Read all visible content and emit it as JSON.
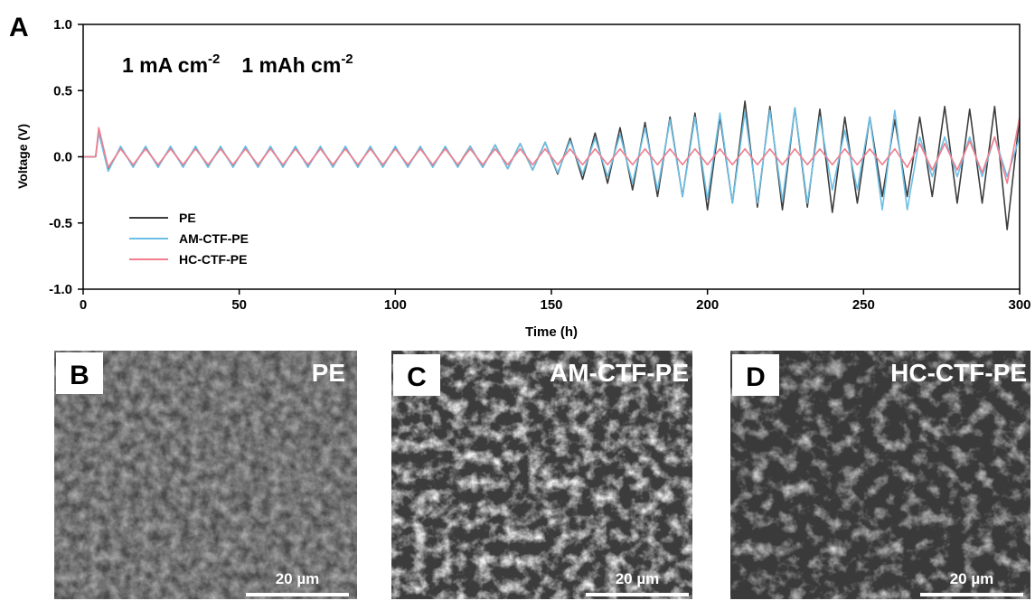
{
  "panel_label": "A",
  "chart_data": {
    "type": "line",
    "ylabel": "Voltage (V)",
    "xlabel": "Time (h)",
    "annotation": [
      "1 mA cm",
      "-2",
      "1 mAh cm",
      "-2"
    ],
    "xlim": [
      0,
      300
    ],
    "xticks": [
      0,
      50,
      100,
      150,
      200,
      250,
      300
    ],
    "ylim": [
      -1,
      1
    ],
    "yticks": [
      {
        "value": 1,
        "label": "1.0"
      },
      {
        "value": 0.5,
        "label": "0.5"
      },
      {
        "value": 0,
        "label": "0.0"
      },
      {
        "value": -0.5,
        "label": "-0.5"
      },
      {
        "value": -1,
        "label": "-1.0"
      }
    ],
    "x": [
      0,
      4,
      5,
      8,
      12,
      16,
      20,
      24,
      28,
      32,
      36,
      40,
      44,
      48,
      52,
      56,
      60,
      64,
      68,
      72,
      76,
      80,
      84,
      88,
      92,
      96,
      100,
      104,
      108,
      112,
      116,
      120,
      124,
      128,
      132,
      136,
      140,
      144,
      148,
      152,
      156,
      160,
      164,
      168,
      172,
      176,
      180,
      184,
      188,
      192,
      196,
      200,
      204,
      208,
      212,
      216,
      220,
      224,
      228,
      232,
      236,
      240,
      244,
      248,
      252,
      256,
      260,
      264,
      268,
      272,
      276,
      280,
      284,
      288,
      292,
      296,
      300
    ],
    "series": [
      {
        "name": "PE",
        "color": "#3d3d3d",
        "values": [
          0,
          0,
          0.2,
          -0.1,
          0.07,
          -0.07,
          0.07,
          -0.07,
          0.07,
          -0.07,
          0.07,
          -0.07,
          0.07,
          -0.07,
          0.07,
          -0.07,
          0.07,
          -0.07,
          0.07,
          -0.07,
          0.07,
          -0.07,
          0.07,
          -0.07,
          0.07,
          -0.07,
          0.07,
          -0.07,
          0.07,
          -0.07,
          0.07,
          -0.07,
          0.08,
          -0.08,
          0.09,
          -0.09,
          0.1,
          -0.1,
          0.11,
          -0.13,
          0.14,
          -0.17,
          0.18,
          -0.2,
          0.22,
          -0.25,
          0.26,
          -0.3,
          0.3,
          -0.3,
          0.33,
          -0.4,
          0.3,
          -0.35,
          0.42,
          -0.38,
          0.38,
          -0.4,
          0.37,
          -0.38,
          0.36,
          -0.42,
          0.3,
          -0.35,
          0.3,
          -0.3,
          0.28,
          -0.3,
          0.3,
          -0.3,
          0.38,
          -0.35,
          0.36,
          -0.35,
          0.38,
          -0.55,
          0.3
        ]
      },
      {
        "name": "AM-CTF-PE",
        "color": "#6cbfe6",
        "values": [
          0,
          0,
          0.18,
          -0.11,
          0.08,
          -0.08,
          0.08,
          -0.08,
          0.08,
          -0.08,
          0.08,
          -0.08,
          0.08,
          -0.08,
          0.08,
          -0.08,
          0.08,
          -0.08,
          0.08,
          -0.08,
          0.08,
          -0.08,
          0.08,
          -0.08,
          0.08,
          -0.08,
          0.08,
          -0.08,
          0.08,
          -0.08,
          0.08,
          -0.08,
          0.08,
          -0.08,
          0.09,
          -0.09,
          0.1,
          -0.1,
          0.11,
          -0.12,
          0.12,
          -0.13,
          0.14,
          -0.15,
          0.17,
          -0.2,
          0.22,
          -0.25,
          0.28,
          -0.3,
          0.3,
          -0.32,
          0.33,
          -0.35,
          0.34,
          -0.35,
          0.35,
          -0.33,
          0.37,
          -0.35,
          0.3,
          -0.25,
          0.2,
          -0.25,
          0.3,
          -0.4,
          0.35,
          -0.4,
          0.15,
          -0.15,
          0.15,
          -0.15,
          0.15,
          -0.15,
          0.15,
          -0.15,
          0.15
        ]
      },
      {
        "name": "HC-CTF-PE",
        "color": "#f27d8c",
        "values": [
          0,
          0,
          0.22,
          -0.08,
          0.06,
          -0.06,
          0.06,
          -0.06,
          0.06,
          -0.06,
          0.06,
          -0.06,
          0.06,
          -0.06,
          0.06,
          -0.06,
          0.06,
          -0.06,
          0.06,
          -0.06,
          0.06,
          -0.06,
          0.06,
          -0.06,
          0.06,
          -0.06,
          0.06,
          -0.06,
          0.06,
          -0.06,
          0.06,
          -0.06,
          0.06,
          -0.06,
          0.06,
          -0.06,
          0.06,
          -0.06,
          0.06,
          -0.06,
          0.06,
          -0.06,
          0.06,
          -0.06,
          0.06,
          -0.06,
          0.06,
          -0.06,
          0.06,
          -0.06,
          0.06,
          -0.06,
          0.06,
          -0.06,
          0.06,
          -0.06,
          0.06,
          -0.06,
          0.06,
          -0.06,
          0.06,
          -0.06,
          0.06,
          -0.06,
          0.06,
          -0.06,
          0.06,
          -0.08,
          0.1,
          -0.1,
          0.1,
          -0.1,
          0.12,
          -0.12,
          0.15,
          -0.2,
          0.3
        ]
      }
    ]
  },
  "panels": [
    {
      "label": "B",
      "title": "PE",
      "scale_bar": "20 µm"
    },
    {
      "label": "C",
      "title": "AM-CTF-PE",
      "scale_bar": "20 µm"
    },
    {
      "label": "D",
      "title": "HC-CTF-PE",
      "scale_bar": "20 µm"
    }
  ]
}
